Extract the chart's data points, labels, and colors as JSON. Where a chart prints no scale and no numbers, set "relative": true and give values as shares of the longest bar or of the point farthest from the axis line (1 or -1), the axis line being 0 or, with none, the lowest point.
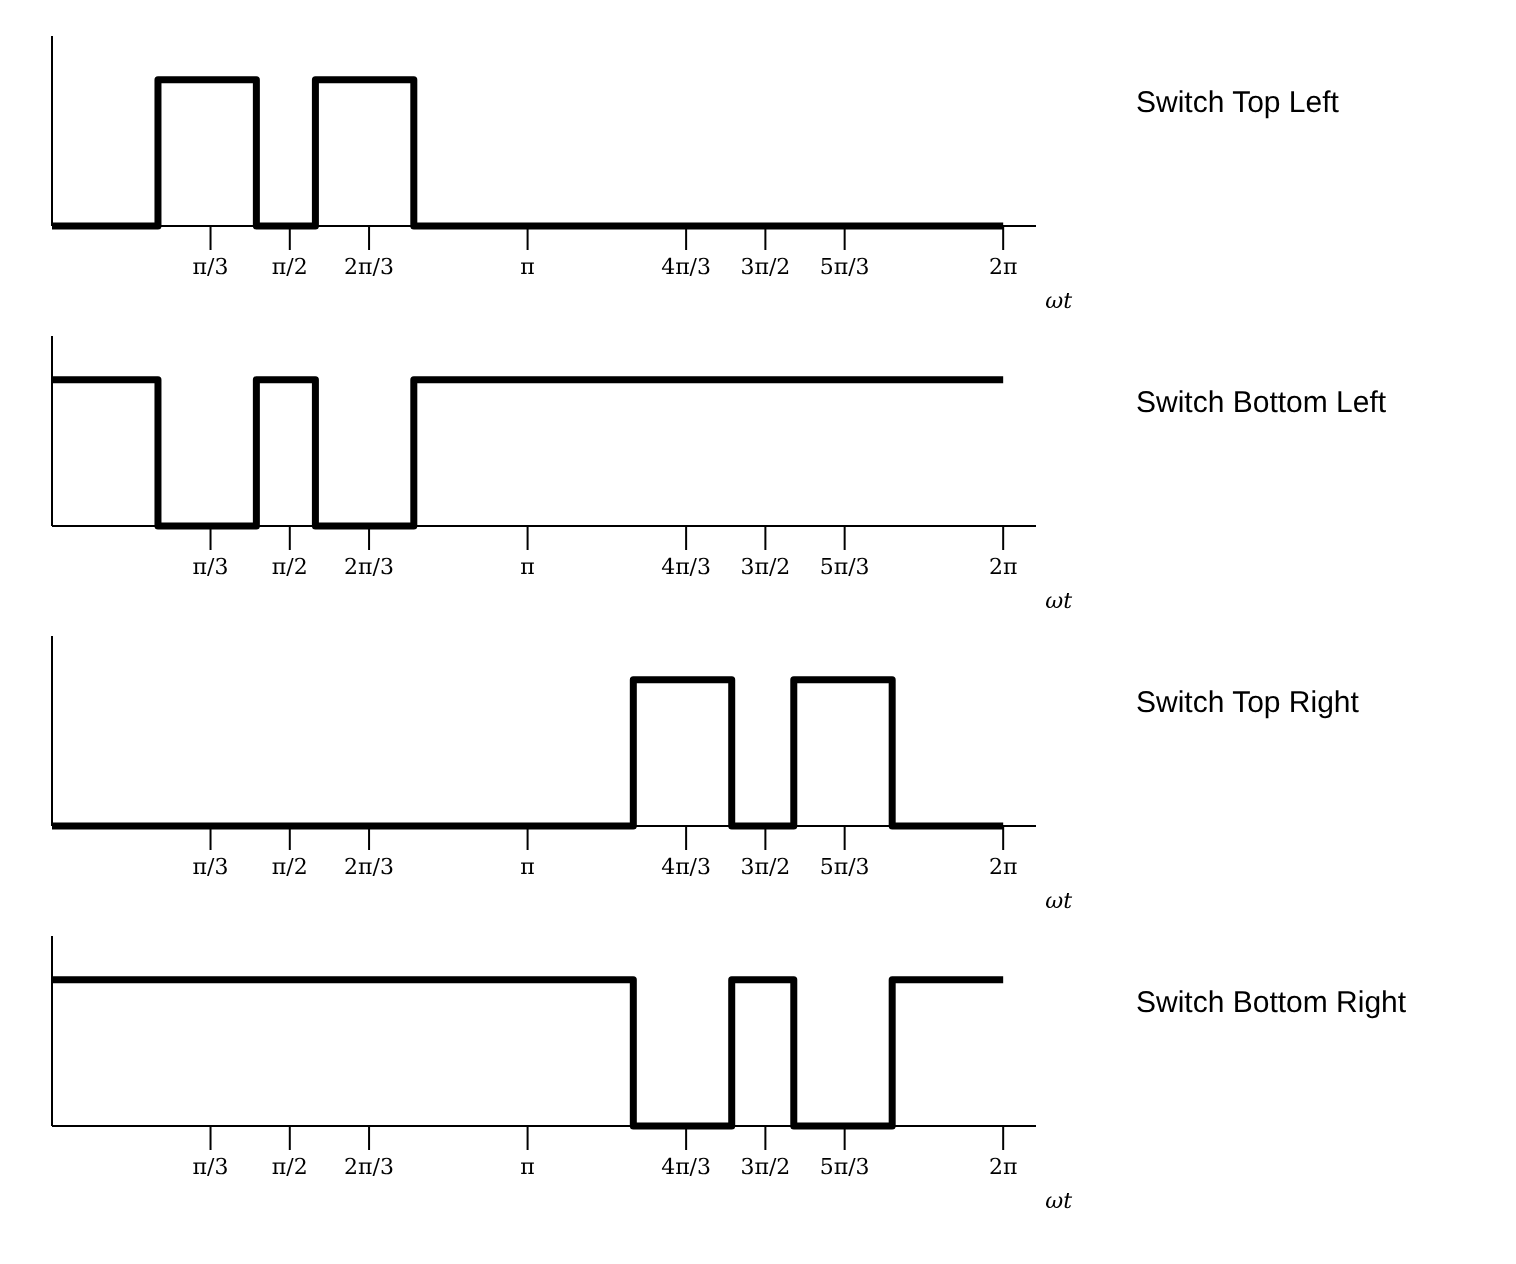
{
  "chart_data": [
    {
      "type": "step",
      "xlabel": "ωt",
      "x": [
        0,
        0.7,
        1.35,
        1.74,
        2.39,
        6.2832
      ],
      "series": [
        {
          "name": "Switch Top Left",
          "color": "#000000",
          "values": [
            0,
            1,
            0,
            1,
            0,
            0
          ]
        }
      ],
      "xlim": [
        0,
        6.5
      ],
      "xticks": [
        {
          "value": 1.0472,
          "label": "π/3"
        },
        {
          "value": 1.5708,
          "label": "π/2"
        },
        {
          "value": 2.0944,
          "label": "2π/3"
        },
        {
          "value": 3.1416,
          "label": "π"
        },
        {
          "value": 4.1888,
          "label": "4π/3"
        },
        {
          "value": 4.7124,
          "label": "3π/2"
        },
        {
          "value": 5.236,
          "label": "5π/3"
        },
        {
          "value": 6.2832,
          "label": "2π"
        }
      ],
      "relative": true,
      "tick_labels": "x",
      "marker": "none",
      "line_style": "solid"
    },
    {
      "type": "step",
      "xlabel": "ωt",
      "x": [
        0,
        0.7,
        1.35,
        1.74,
        2.39,
        6.2832
      ],
      "series": [
        {
          "name": "Switch Bottom Left",
          "color": "#000000",
          "values": [
            1,
            0,
            1,
            0,
            1,
            1
          ]
        }
      ],
      "xlim": [
        0,
        6.5
      ],
      "xticks": [
        {
          "value": 1.0472,
          "label": "π/3"
        },
        {
          "value": 1.5708,
          "label": "π/2"
        },
        {
          "value": 2.0944,
          "label": "2π/3"
        },
        {
          "value": 3.1416,
          "label": "π"
        },
        {
          "value": 4.1888,
          "label": "4π/3"
        },
        {
          "value": 4.7124,
          "label": "3π/2"
        },
        {
          "value": 5.236,
          "label": "5π/3"
        },
        {
          "value": 6.2832,
          "label": "2π"
        }
      ],
      "relative": true,
      "tick_labels": "x",
      "marker": "none",
      "line_style": "solid"
    },
    {
      "type": "step",
      "xlabel": "ωt",
      "x": [
        0,
        3.84,
        4.49,
        4.9,
        5.55,
        6.2832
      ],
      "series": [
        {
          "name": "Switch Top Right",
          "color": "#000000",
          "values": [
            0,
            1,
            0,
            1,
            0,
            0
          ]
        }
      ],
      "xlim": [
        0,
        6.5
      ],
      "xticks": [
        {
          "value": 1.0472,
          "label": "π/3"
        },
        {
          "value": 1.5708,
          "label": "π/2"
        },
        {
          "value": 2.0944,
          "label": "2π/3"
        },
        {
          "value": 3.1416,
          "label": "π"
        },
        {
          "value": 4.1888,
          "label": "4π/3"
        },
        {
          "value": 4.7124,
          "label": "3π/2"
        },
        {
          "value": 5.236,
          "label": "5π/3"
        },
        {
          "value": 6.2832,
          "label": "2π"
        }
      ],
      "relative": true,
      "tick_labels": "x",
      "marker": "none",
      "line_style": "solid"
    },
    {
      "type": "step",
      "xlabel": "ωt",
      "x": [
        0,
        3.84,
        4.49,
        4.9,
        5.55,
        6.2832
      ],
      "series": [
        {
          "name": "Switch Bottom Right",
          "color": "#000000",
          "values": [
            1,
            0,
            1,
            0,
            1,
            1
          ]
        }
      ],
      "xlim": [
        0,
        6.5
      ],
      "xticks": [
        {
          "value": 1.0472,
          "label": "π/3"
        },
        {
          "value": 1.5708,
          "label": "π/2"
        },
        {
          "value": 2.0944,
          "label": "2π/3"
        },
        {
          "value": 3.1416,
          "label": "π"
        },
        {
          "value": 4.1888,
          "label": "4π/3"
        },
        {
          "value": 4.7124,
          "label": "3π/2"
        },
        {
          "value": 5.236,
          "label": "5π/3"
        },
        {
          "value": 6.2832,
          "label": "2π"
        }
      ],
      "relative": true,
      "tick_labels": "x",
      "marker": "none",
      "line_style": "solid"
    }
  ]
}
